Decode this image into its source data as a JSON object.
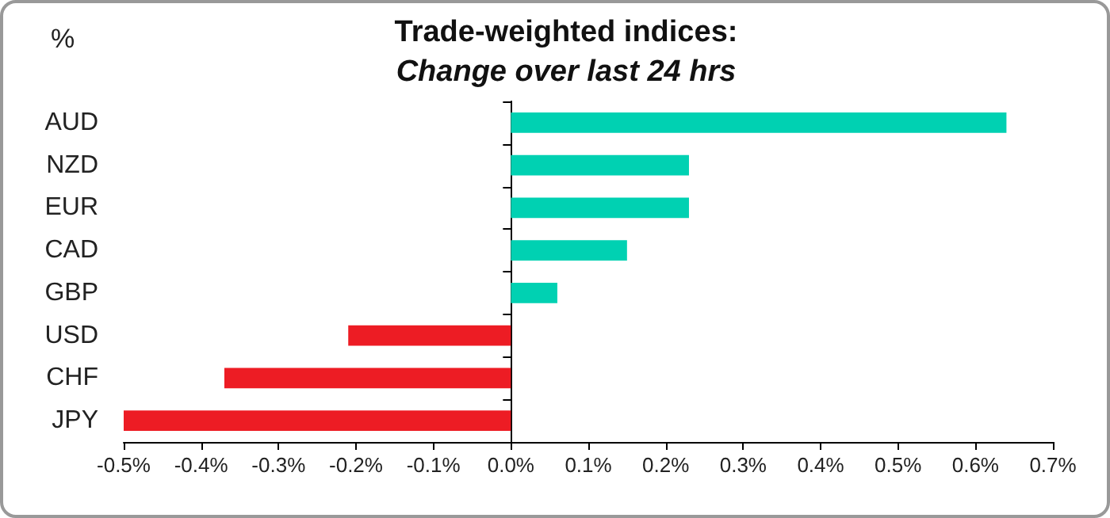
{
  "chart_data": {
    "type": "bar",
    "orientation": "horizontal",
    "title": "Trade-weighted indices:",
    "subtitle": "Change over last 24 hrs",
    "annotations": [
      "%"
    ],
    "categories": [
      "AUD",
      "NZD",
      "EUR",
      "CAD",
      "GBP",
      "USD",
      "CHF",
      "JPY"
    ],
    "values": [
      0.64,
      0.23,
      0.23,
      0.15,
      0.06,
      -0.21,
      -0.37,
      -0.5
    ],
    "colors": [
      "#00d1b2",
      "#00d1b2",
      "#00d1b2",
      "#00d1b2",
      "#00d1b2",
      "#ed1c24",
      "#ed1c24",
      "#ed1c24"
    ],
    "xlim": [
      -0.5,
      0.7
    ],
    "xticks": [
      {
        "value": -0.5,
        "label": "-0.5%"
      },
      {
        "value": -0.4,
        "label": "-0.4%"
      },
      {
        "value": -0.3,
        "label": "-0.3%"
      },
      {
        "value": -0.2,
        "label": "-0.2%"
      },
      {
        "value": -0.1,
        "label": "-0.1%"
      },
      {
        "value": 0,
        "label": "0.0%"
      },
      {
        "value": 0.1,
        "label": "0.1%"
      },
      {
        "value": 0.2,
        "label": "0.2%"
      },
      {
        "value": 0.3,
        "label": "0.3%"
      },
      {
        "value": 0.4,
        "label": "0.4%"
      },
      {
        "value": 0.5,
        "label": "0.5%"
      },
      {
        "value": 0.6,
        "label": "0.6%"
      },
      {
        "value": 0.7,
        "label": "0.7%"
      }
    ]
  }
}
